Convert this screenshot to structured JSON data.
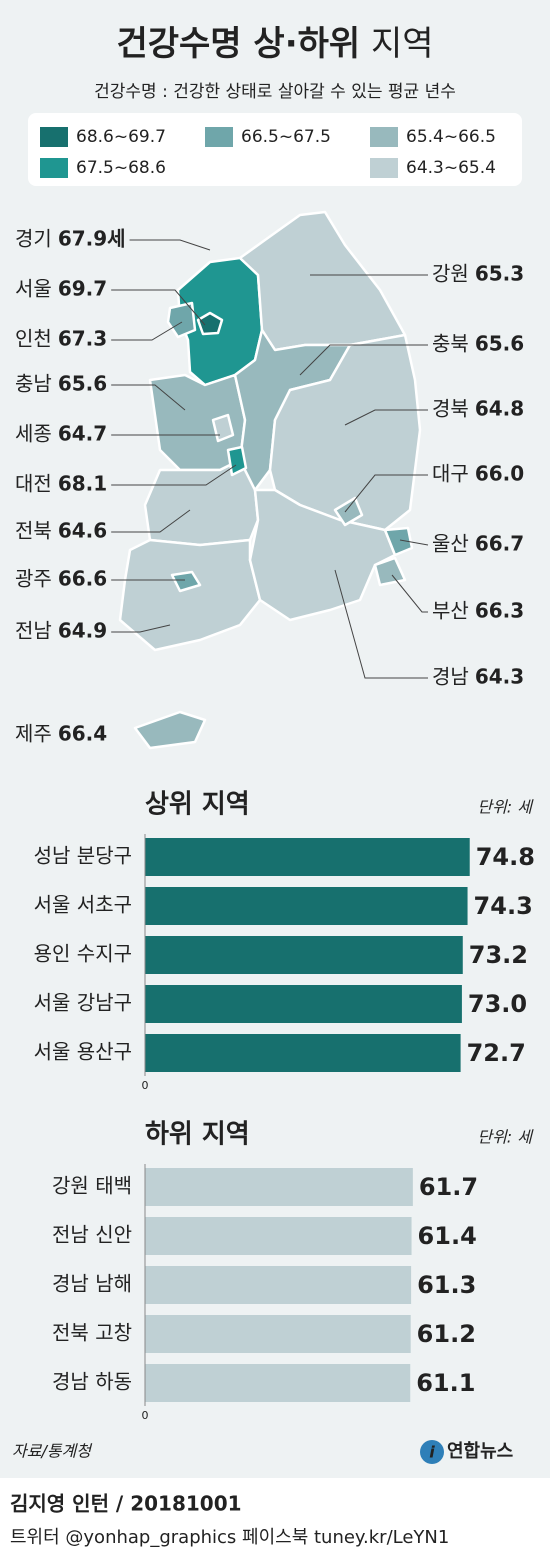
{
  "header": {
    "title": "건강수명 상·하위",
    "title_suffix": "지역",
    "subtitle": "건강수명 : 건강한 상태로 살아갈 수 있는 평균 년수"
  },
  "chart_data": [
    {
      "type": "map",
      "legend": [
        {
          "label": "68.6~69.7",
          "min": 68.6,
          "max": 69.7,
          "color": "#17706e"
        },
        {
          "label": "67.5~68.6",
          "min": 67.5,
          "max": 68.6,
          "color": "#1f9691"
        },
        {
          "label": "66.5~67.5",
          "min": 66.5,
          "max": 67.5,
          "color": "#6fa6aa"
        },
        {
          "label": "65.4~66.5",
          "min": 65.4,
          "max": 66.5,
          "color": "#98b9bd"
        },
        {
          "label": "64.3~65.4",
          "min": 64.3,
          "max": 65.4,
          "color": "#bfd0d4"
        }
      ],
      "categories": [
        "경기",
        "서울",
        "인천",
        "충남",
        "세종",
        "대전",
        "전북",
        "광주",
        "전남",
        "제주",
        "강원",
        "충북",
        "경북",
        "대구",
        "울산",
        "부산",
        "경남"
      ],
      "values": [
        67.9,
        69.7,
        67.3,
        65.6,
        64.7,
        68.1,
        64.6,
        66.6,
        64.9,
        66.4,
        65.3,
        65.6,
        64.8,
        66.0,
        66.7,
        66.3,
        64.3
      ],
      "value_labels": [
        "67.9세",
        "69.7",
        "67.3",
        "65.6",
        "64.7",
        "68.1",
        "64.6",
        "66.6",
        "64.9",
        "66.4",
        "65.3",
        "65.6",
        "64.8",
        "66.0",
        "66.7",
        "66.3",
        "64.3"
      ]
    },
    {
      "type": "bar",
      "orientation": "horizontal",
      "title": "상위 지역",
      "unit": "단위: 세",
      "categories": [
        "성남 분당구",
        "서울 서초구",
        "용인 수지구",
        "서울 강남구",
        "서울 용산구"
      ],
      "values": [
        74.8,
        74.3,
        73.2,
        73.0,
        72.7
      ],
      "value_labels": [
        "74.8",
        "74.3",
        "73.2",
        "73.0",
        "72.7"
      ],
      "color": "#17706e",
      "xlim": [
        0,
        85
      ],
      "xticks": [
        0
      ]
    },
    {
      "type": "bar",
      "orientation": "horizontal",
      "title": "하위 지역",
      "unit": "단위: 세",
      "categories": [
        "강원 태백",
        "전남 신안",
        "경남 남해",
        "전북 고창",
        "경남 하동"
      ],
      "values": [
        61.7,
        61.4,
        61.3,
        61.2,
        61.1
      ],
      "color": "#bfd0d4",
      "xlim": [
        0,
        85
      ],
      "xticks": [
        0
      ]
    }
  ],
  "footer": {
    "source": "자료/통계청",
    "logo": "연합뉴스",
    "credit": "김지영 인턴 / 20181001",
    "social": "트위터 @yonhap_graphics  페이스북 tuney.kr/LeYN1"
  }
}
